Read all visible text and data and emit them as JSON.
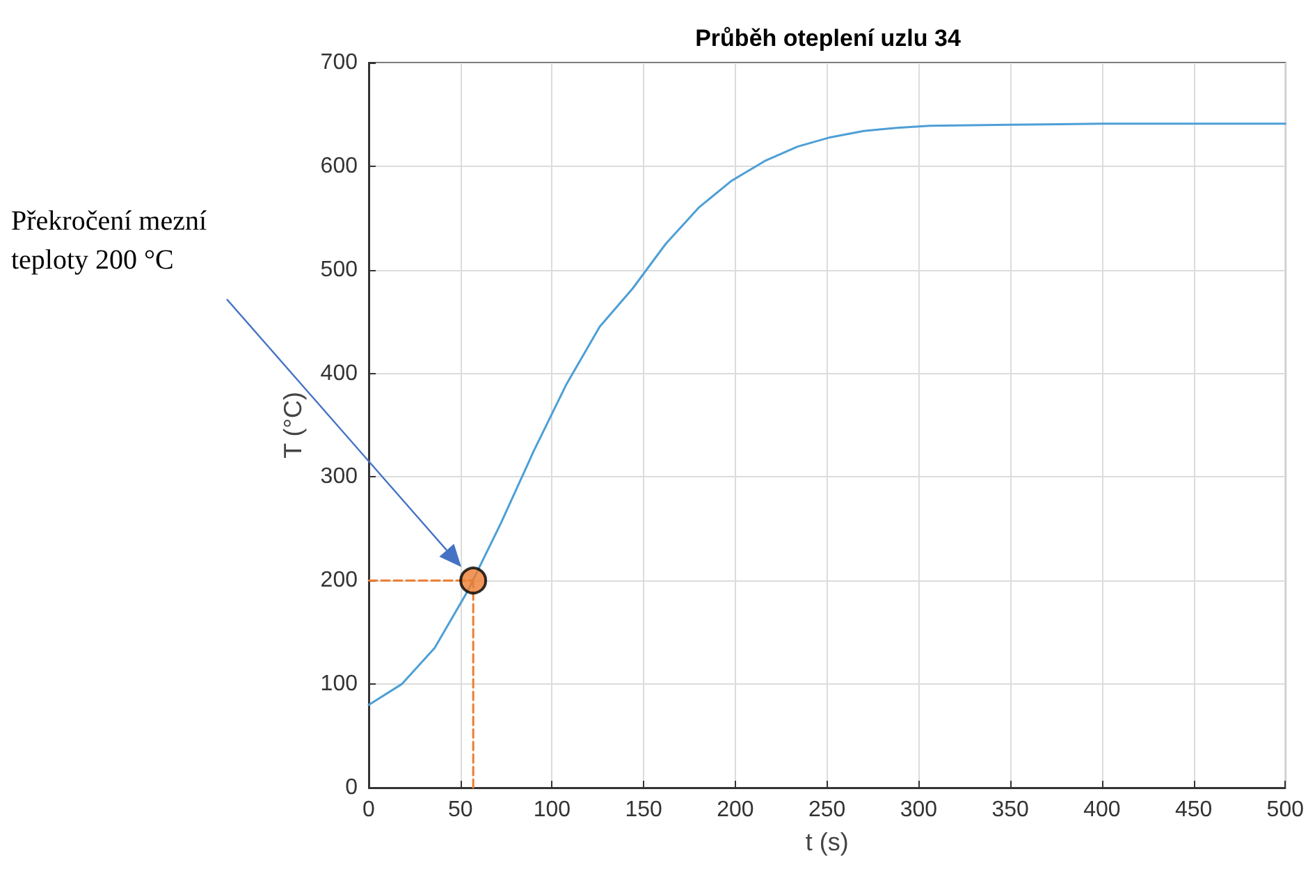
{
  "chart_data": {
    "type": "line",
    "title": "Průběh oteplení uzlu 34",
    "xlabel": "t (s)",
    "ylabel": "T (°C)",
    "xlim": [
      0,
      500
    ],
    "xticks": [
      0,
      50,
      100,
      150,
      200,
      250,
      300,
      350,
      400,
      450,
      500
    ],
    "ylim": [
      0,
      700
    ],
    "yticks": [
      0,
      100,
      200,
      300,
      400,
      500,
      600,
      700
    ],
    "grid": true,
    "marker": "none",
    "line_style": "solid",
    "annotations": [
      "Překročení mezní teploty 200 °C"
    ],
    "series": [
      {
        "color": "#4d9fd6",
        "x": [
          0,
          18,
          36,
          54,
          72,
          90,
          108,
          126,
          144,
          162,
          180,
          198,
          216,
          234,
          252,
          270,
          288,
          306,
          350,
          400,
          500
        ],
        "values": [
          80,
          100,
          135,
          190,
          255,
          325,
          390,
          445,
          482,
          525,
          560,
          586,
          605,
          619,
          628,
          634,
          637,
          639,
          640,
          641,
          641
        ]
      },
      {
        "type": "line",
        "color": "#ed7d31",
        "line_style": "dashed",
        "x": [
          0,
          57
        ],
        "values": [
          200,
          200
        ]
      },
      {
        "type": "line",
        "color": "#ed7d31",
        "line_style": "dashed",
        "x": [
          57,
          57
        ],
        "values": [
          0,
          200
        ]
      },
      {
        "type": "scatter",
        "color": "#ed7d31",
        "marker": "circle",
        "x": [
          57
        ],
        "values": [
          200
        ]
      }
    ]
  }
}
